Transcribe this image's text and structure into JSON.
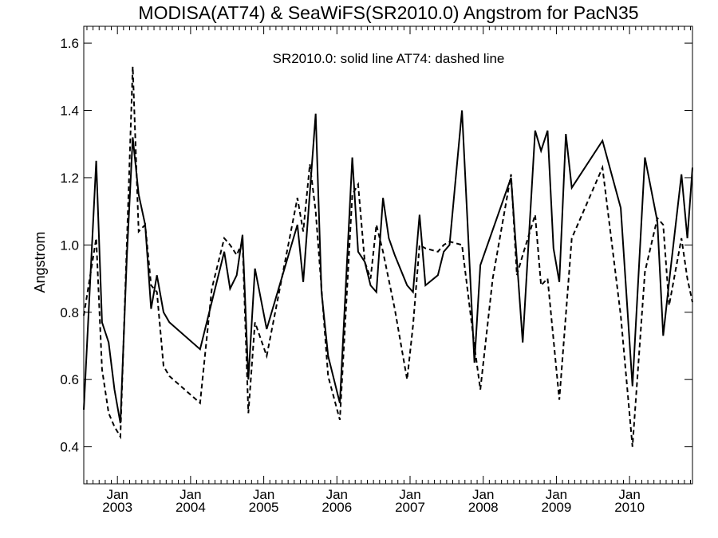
{
  "chart_data": {
    "type": "line",
    "title": "MODISA(AT74) & SeaWiFS(SR2010.0)  Angstrom for PacN35",
    "legend_text": "SR2010.0: solid line   AT74: dashed line",
    "xlabel": "",
    "ylabel": "Angstrom",
    "ylim": [
      0.29,
      1.65
    ],
    "xlim": [
      2002.54,
      2010.86
    ],
    "y_ticks": [
      0.4,
      0.6,
      0.8,
      1.0,
      1.2,
      1.4,
      1.6
    ],
    "y_tick_labels": [
      "0.4",
      "0.6",
      "0.8",
      "1.0",
      "1.2",
      "1.4",
      "1.6"
    ],
    "x_major_ticks": [
      2003.0,
      2004.0,
      2005.0,
      2006.0,
      2007.0,
      2008.0,
      2009.0,
      2010.0
    ],
    "x_month_labels": [
      "Jan",
      "Jan",
      "Jan",
      "Jan",
      "Jan",
      "Jan",
      "Jan",
      "Jan"
    ],
    "x_year_labels": [
      "2003",
      "2004",
      "2005",
      "2006",
      "2007",
      "2008",
      "2009",
      "2010"
    ],
    "x_minor_step": 0.0833333,
    "grid": false,
    "series": [
      {
        "name": "SR2010.0",
        "style": "solid",
        "color": "#000000",
        "x": [
          2002.54,
          2002.71,
          2002.79,
          2002.88,
          2002.96,
          2003.04,
          2003.13,
          2003.21,
          2003.29,
          2003.38,
          2003.46,
          2003.54,
          2003.63,
          2003.71,
          2004.13,
          2004.46,
          2004.54,
          2004.63,
          2004.71,
          2004.79,
          2004.88,
          2005.04,
          2005.46,
          2005.54,
          2005.71,
          2005.79,
          2005.88,
          2006.04,
          2006.21,
          2006.29,
          2006.38,
          2006.46,
          2006.54,
          2006.63,
          2006.71,
          2006.79,
          2006.96,
          2007.04,
          2007.13,
          2007.21,
          2007.38,
          2007.46,
          2007.54,
          2007.71,
          2007.88,
          2007.96,
          2008.38,
          2008.54,
          2008.71,
          2008.79,
          2008.88,
          2008.96,
          2009.04,
          2009.13,
          2009.21,
          2009.63,
          2009.88,
          2010.04,
          2010.21,
          2010.38,
          2010.46,
          2010.54,
          2010.71,
          2010.79,
          2010.86
        ],
        "y": [
          0.51,
          1.25,
          0.77,
          0.71,
          0.57,
          0.47,
          0.97,
          1.32,
          1.15,
          1.06,
          0.81,
          0.91,
          0.8,
          0.77,
          0.69,
          0.98,
          0.87,
          0.91,
          1.03,
          0.6,
          0.93,
          0.75,
          1.06,
          0.89,
          1.39,
          0.86,
          0.67,
          0.53,
          1.26,
          0.98,
          0.95,
          0.88,
          0.86,
          1.14,
          1.02,
          0.97,
          0.88,
          0.86,
          1.09,
          0.88,
          0.91,
          0.98,
          1.0,
          1.4,
          0.65,
          0.94,
          1.2,
          0.71,
          1.34,
          1.28,
          1.34,
          0.99,
          0.89,
          1.33,
          1.17,
          1.31,
          1.11,
          0.58,
          1.26,
          1.07,
          0.73,
          0.89,
          1.21,
          1.02,
          1.23
        ]
      },
      {
        "name": "AT74",
        "style": "dashed",
        "color": "#000000",
        "x": [
          2002.54,
          2002.71,
          2002.79,
          2002.88,
          2002.96,
          2003.04,
          2003.21,
          2003.29,
          2003.38,
          2003.46,
          2003.54,
          2003.63,
          2003.71,
          2004.13,
          2004.29,
          2004.46,
          2004.54,
          2004.63,
          2004.71,
          2004.79,
          2004.88,
          2005.04,
          2005.21,
          2005.46,
          2005.54,
          2005.63,
          2005.71,
          2005.88,
          2006.04,
          2006.21,
          2006.29,
          2006.38,
          2006.46,
          2006.54,
          2006.63,
          2006.79,
          2006.96,
          2007.04,
          2007.13,
          2007.21,
          2007.38,
          2007.46,
          2007.54,
          2007.71,
          2007.88,
          2007.96,
          2008.13,
          2008.38,
          2008.46,
          2008.54,
          2008.71,
          2008.79,
          2008.88,
          2009.04,
          2009.21,
          2009.63,
          2009.88,
          2010.04,
          2010.21,
          2010.38,
          2010.46,
          2010.54,
          2010.71,
          2010.79,
          2010.86
        ],
        "y": [
          0.79,
          1.02,
          0.63,
          0.5,
          0.46,
          0.43,
          1.53,
          1.04,
          1.06,
          0.88,
          0.86,
          0.64,
          0.61,
          0.53,
          0.87,
          1.02,
          1.0,
          0.97,
          1.01,
          0.5,
          0.77,
          0.67,
          0.86,
          1.14,
          1.04,
          1.24,
          1.1,
          0.61,
          0.48,
          1.15,
          1.18,
          0.95,
          0.9,
          1.06,
          0.98,
          0.81,
          0.6,
          0.76,
          1.0,
          0.99,
          0.98,
          1.0,
          1.01,
          1.0,
          0.7,
          0.57,
          0.9,
          1.21,
          0.91,
          0.97,
          1.09,
          0.88,
          0.9,
          0.54,
          1.02,
          1.23,
          0.79,
          0.4,
          0.92,
          1.08,
          1.06,
          0.82,
          1.02,
          0.9,
          0.83
        ]
      }
    ]
  }
}
